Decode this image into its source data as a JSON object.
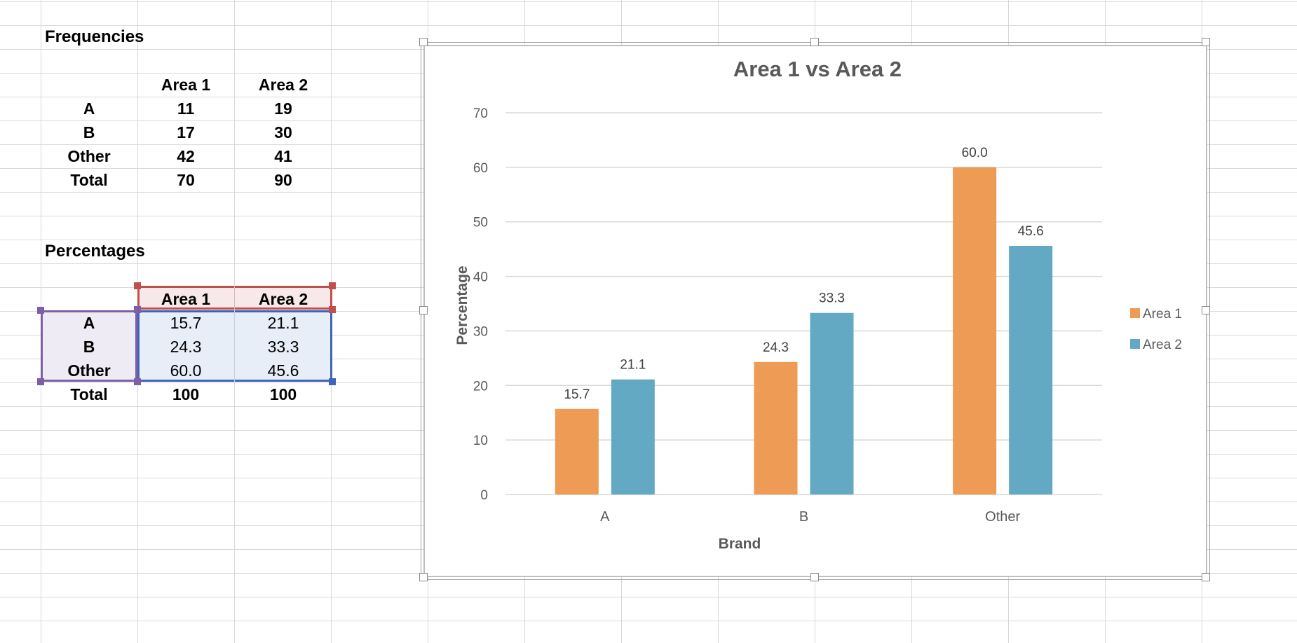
{
  "frequencies": {
    "title": "Frequencies",
    "headers": [
      "Area 1",
      "Area 2"
    ],
    "rows": [
      {
        "label": "A",
        "v1": "11",
        "v2": "19"
      },
      {
        "label": "B",
        "v1": "17",
        "v2": "30"
      },
      {
        "label": "Other",
        "v1": "42",
        "v2": "41"
      },
      {
        "label": "Total",
        "v1": "70",
        "v2": "90"
      }
    ]
  },
  "percentages": {
    "title": "Percentages",
    "headers": [
      "Area 1",
      "Area 2"
    ],
    "rows": [
      {
        "label": "A",
        "v1": "15.7",
        "v2": "21.1"
      },
      {
        "label": "B",
        "v1": "24.3",
        "v2": "33.3"
      },
      {
        "label": "Other",
        "v1": "60.0",
        "v2": "45.6"
      },
      {
        "label": "Total",
        "v1": "100",
        "v2": "100"
      }
    ]
  },
  "colors": {
    "area1": "#ed9b55",
    "area2": "#63a9c4",
    "header_selection": "#c0504d",
    "label_selection": "#7e5ea8",
    "data_selection": "#3f64b5"
  },
  "chart_data": {
    "type": "bar",
    "title": "Area 1 vs Area 2",
    "xlabel": "Brand",
    "ylabel": "Percentage",
    "categories": [
      "A",
      "B",
      "Other"
    ],
    "series": [
      {
        "name": "Area 1",
        "values": [
          15.7,
          24.3,
          60.0
        ],
        "labels": [
          "15.7",
          "24.3",
          "60.0"
        ],
        "color": "#ed9b55"
      },
      {
        "name": "Area 2",
        "values": [
          21.1,
          33.3,
          45.6
        ],
        "labels": [
          "21.1",
          "33.3",
          "45.6"
        ],
        "color": "#63a9c4"
      }
    ],
    "ylim": [
      0,
      70
    ],
    "yticks": [
      0,
      10,
      20,
      30,
      40,
      50,
      60,
      70
    ],
    "grid": true,
    "legend": "right"
  }
}
